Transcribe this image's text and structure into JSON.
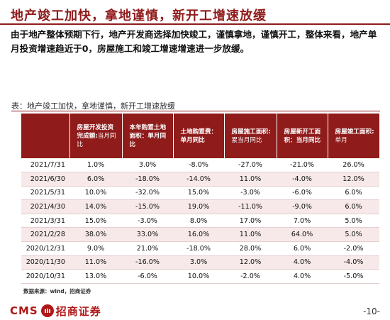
{
  "header": {
    "title": "地产竣工加快，拿地谨慎，新开工增速放缓",
    "summary": "由于地产整体预期下行，地产开发商选择加快竣工，谨慎拿地，谨慎开工，整体来看，地产单月投资增速趋近于0，房屋施工和竣工增速增速进一步放缓。"
  },
  "table": {
    "caption": "表：地产竣工加快，拿地谨慎，新开工增速放缓",
    "headers": [
      {
        "main": "",
        "sub": ""
      },
      {
        "main": "房屋开发投资完成额:",
        "sub": "当月同比"
      },
      {
        "main": "本年购置土地面积：单月同比",
        "sub": ""
      },
      {
        "main": "土地购置费：单月同比",
        "sub": ""
      },
      {
        "main": "房屋施工面积:",
        "sub": "累当月同比"
      },
      {
        "main": "房屋新开工面积：当月同比",
        "sub": ""
      },
      {
        "main": "房屋竣工面积:",
        "sub": "单月"
      }
    ],
    "rows": [
      [
        "2021/7/31",
        "1.0%",
        "3.0%",
        "-8.0%",
        "-27.0%",
        "-21.0%",
        "26.0%"
      ],
      [
        "2021/6/30",
        "6.0%",
        "-18.0%",
        "-14.0%",
        "11.0%",
        "-4.0%",
        "12.0%"
      ],
      [
        "2021/5/31",
        "10.0%",
        "-32.0%",
        "15.0%",
        "-3.0%",
        "-6.0%",
        "6.0%"
      ],
      [
        "2021/4/30",
        "14.0%",
        "-15.0%",
        "19.0%",
        "-11.0%",
        "-9.0%",
        "6.0%"
      ],
      [
        "2021/3/31",
        "15.0%",
        "-3.0%",
        "8.0%",
        "17.0%",
        "7.0%",
        "5.0%"
      ],
      [
        "2021/2/28",
        "38.0%",
        "33.0%",
        "16.0%",
        "11.0%",
        "64.0%",
        "5.0%"
      ],
      [
        "2020/12/31",
        "9.0%",
        "21.0%",
        "-18.0%",
        "28.0%",
        "6.0%",
        "-2.0%"
      ],
      [
        "2020/11/30",
        "11.0%",
        "-16.0%",
        "3.0%",
        "12.0%",
        "4.0%",
        "-4.0%"
      ],
      [
        "2020/10/31",
        "13.0%",
        "-6.0%",
        "10.0%",
        "-2.0%",
        "4.0%",
        "-5.0%"
      ]
    ],
    "source": "数据来源：wind，招商证券"
  },
  "footer": {
    "logo_text": "CMS",
    "logo_cn": "招商证券",
    "page_number": "-10-"
  },
  "colors": {
    "brand": "#8f1b1b",
    "logo": "#b01818",
    "stripe": "#f7e9e9"
  }
}
